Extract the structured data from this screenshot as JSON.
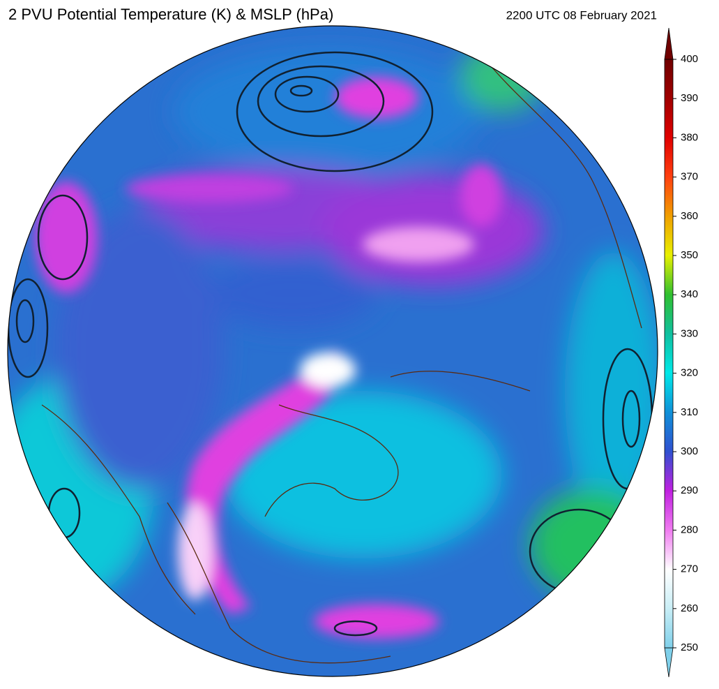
{
  "header": {
    "title": "2 PVU Potential Temperature (K) & MSLP (hPa)",
    "timestamp": "2200 UTC 08 February 2021"
  },
  "colorbar": {
    "lim": [
      250,
      400
    ],
    "ticks": [
      250,
      260,
      270,
      280,
      290,
      300,
      310,
      320,
      330,
      340,
      350,
      360,
      370,
      380,
      390,
      400
    ]
  }
}
